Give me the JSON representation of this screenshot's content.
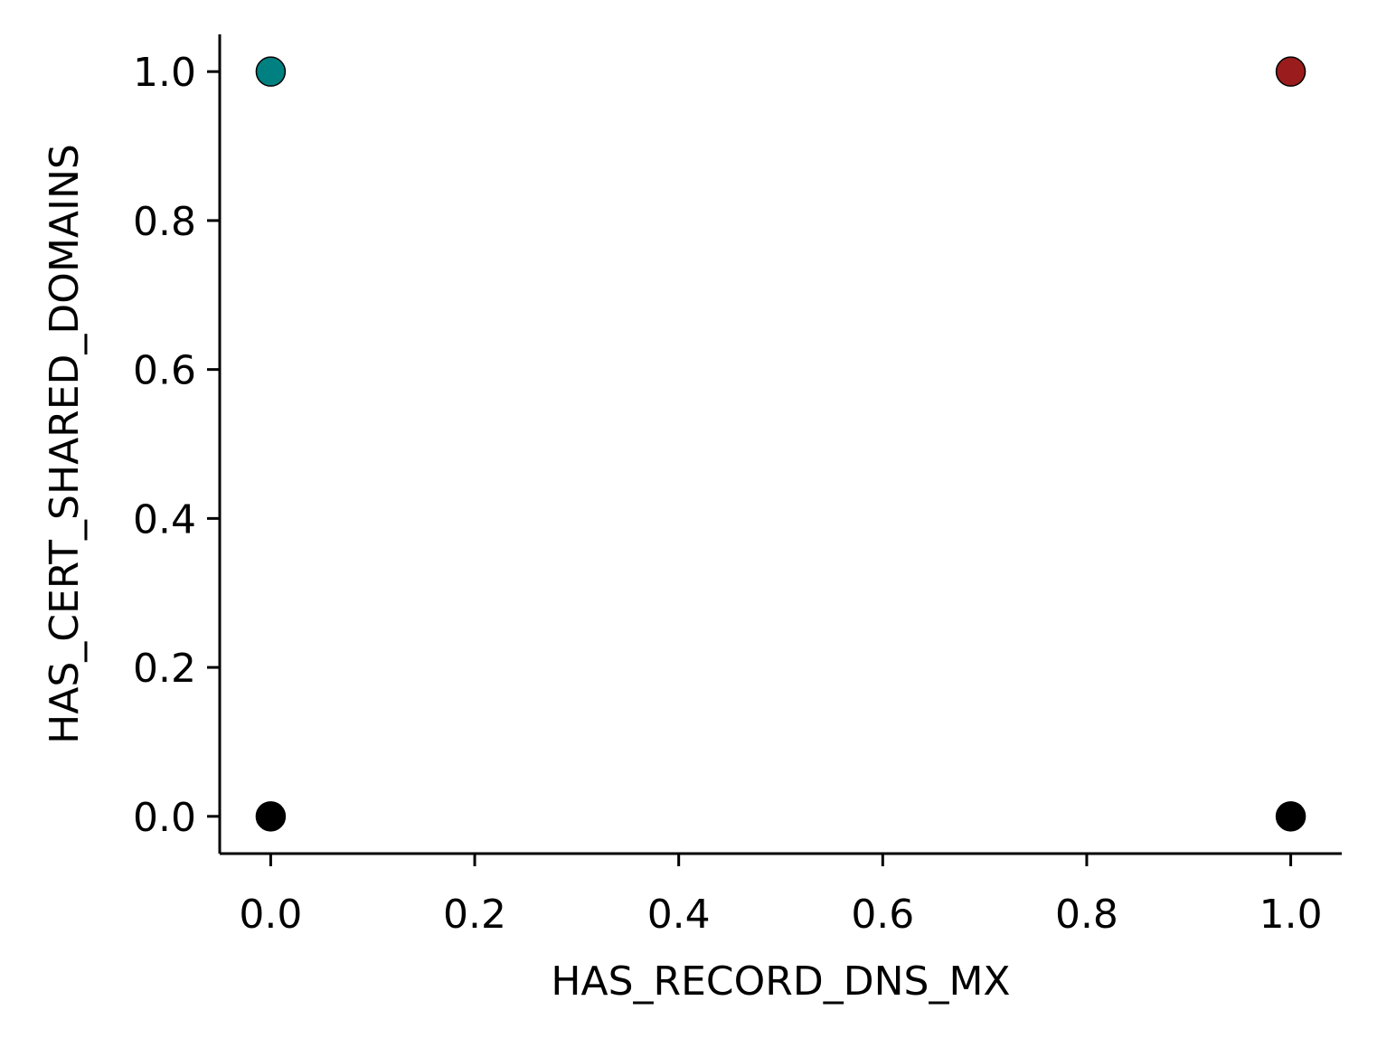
{
  "chart_data": {
    "type": "scatter",
    "title": "",
    "xlabel": "HAS_RECORD_DNS_MX",
    "ylabel": "HAS_CERT_SHARED_DOMAINS",
    "xlim": [
      -0.05,
      1.05
    ],
    "ylim": [
      -0.05,
      1.05
    ],
    "xticks": [
      0.0,
      0.2,
      0.4,
      0.6,
      0.8,
      1.0
    ],
    "xtick_labels": [
      "0.0",
      "0.2",
      "0.4",
      "0.6",
      "0.8",
      "1.0"
    ],
    "yticks": [
      0.0,
      0.2,
      0.4,
      0.6,
      0.8,
      1.0
    ],
    "ytick_labels": [
      "0.0",
      "0.2",
      "0.4",
      "0.6",
      "0.8",
      "1.0"
    ],
    "grid": false,
    "legend": "none",
    "points": [
      {
        "x": 0.0,
        "y": 1.0,
        "color": "#008080"
      },
      {
        "x": 1.0,
        "y": 1.0,
        "color": "#9b1c1c"
      },
      {
        "x": 0.0,
        "y": 0.0,
        "color": "#000000"
      },
      {
        "x": 1.0,
        "y": 0.0,
        "color": "#000000"
      }
    ]
  }
}
